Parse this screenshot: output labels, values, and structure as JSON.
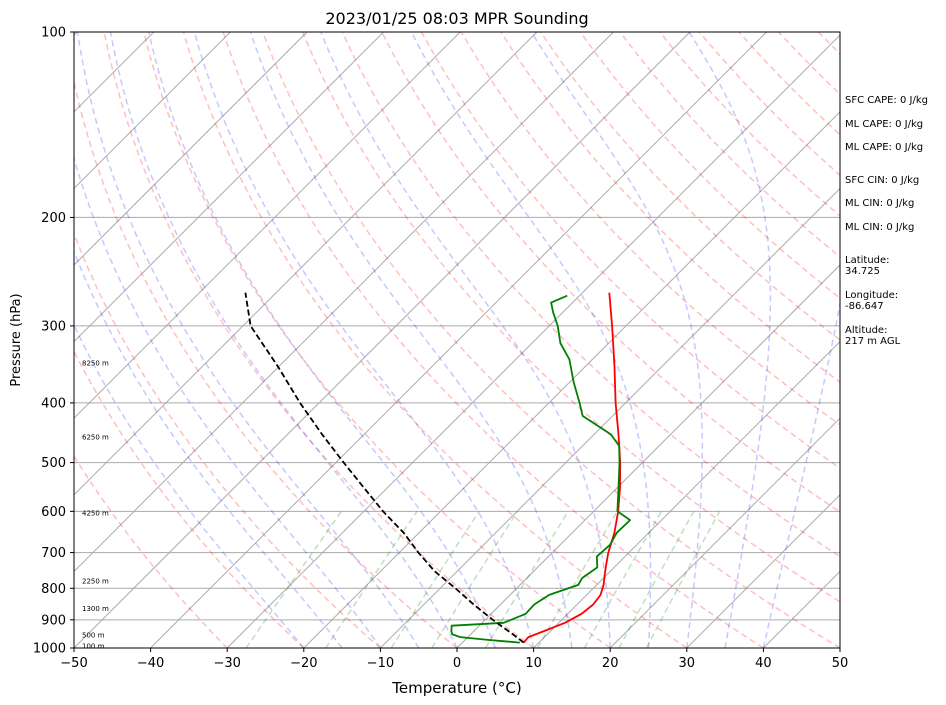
{
  "chart_data": {
    "type": "line",
    "title": "2023/01/25 08:03 MPR Sounding",
    "xlabel": "Temperature (°C)",
    "ylabel": "Pressure (hPa)",
    "xlim": [
      -50,
      50
    ],
    "ylim": [
      1000,
      100
    ],
    "y_scale": "log",
    "x_ticks": [
      -50,
      -40,
      -30,
      -20,
      -10,
      0,
      10,
      20,
      30,
      40,
      50
    ],
    "x_tick_labels": [
      "−50",
      "−40",
      "−30",
      "−20",
      "−10",
      "0",
      "10",
      "20",
      "30",
      "40",
      "50"
    ],
    "y_ticks": [
      1000,
      900,
      800,
      700,
      600,
      500,
      400,
      300,
      200,
      100
    ],
    "y_tick_labels": [
      "1000",
      "900",
      "800",
      "700",
      "600",
      "500",
      "400",
      "300",
      "200",
      "100"
    ],
    "grid": true,
    "skew": "skew-T",
    "height_labels": [
      {
        "p": 995,
        "text": "100 m"
      },
      {
        "p": 955,
        "text": "500 m"
      },
      {
        "p": 865,
        "text": "1300 m"
      },
      {
        "p": 780,
        "text": "2250 m"
      },
      {
        "p": 605,
        "text": "4250 m"
      },
      {
        "p": 455,
        "text": "6250 m"
      },
      {
        "p": 345,
        "text": "8250 m"
      }
    ],
    "series": [
      {
        "color": "#ff0000",
        "points": [
          {
            "p": 980,
            "t": 8.0
          },
          {
            "p": 960,
            "t": 7.9
          },
          {
            "p": 940,
            "t": 9.1
          },
          {
            "p": 910,
            "t": 10.8
          },
          {
            "p": 880,
            "t": 11.8
          },
          {
            "p": 850,
            "t": 12.1
          },
          {
            "p": 820,
            "t": 11.8
          },
          {
            "p": 790,
            "t": 10.9
          },
          {
            "p": 760,
            "t": 9.7
          },
          {
            "p": 730,
            "t": 8.5
          },
          {
            "p": 700,
            "t": 7.3
          },
          {
            "p": 650,
            "t": 5.5
          },
          {
            "p": 600,
            "t": 3.2
          },
          {
            "p": 550,
            "t": 0.4
          },
          {
            "p": 500,
            "t": -2.9
          },
          {
            "p": 450,
            "t": -6.8
          },
          {
            "p": 400,
            "t": -11.3
          },
          {
            "p": 350,
            "t": -16.1
          },
          {
            "p": 300,
            "t": -21.8
          },
          {
            "p": 265,
            "t": -26.5
          }
        ]
      },
      {
        "color": "#008000",
        "points": [
          {
            "p": 980,
            "t": 7.5
          },
          {
            "p": 970,
            "t": 3.0
          },
          {
            "p": 960,
            "t": -1.0
          },
          {
            "p": 950,
            "t": -2.4
          },
          {
            "p": 940,
            "t": -2.9
          },
          {
            "p": 920,
            "t": -3.6
          },
          {
            "p": 910,
            "t": 2.8
          },
          {
            "p": 880,
            "t": 4.5
          },
          {
            "p": 850,
            "t": 4.4
          },
          {
            "p": 820,
            "t": 5.1
          },
          {
            "p": 790,
            "t": 7.6
          },
          {
            "p": 770,
            "t": 7.2
          },
          {
            "p": 740,
            "t": 7.8
          },
          {
            "p": 710,
            "t": 6.3
          },
          {
            "p": 680,
            "t": 6.5
          },
          {
            "p": 650,
            "t": 5.8
          },
          {
            "p": 620,
            "t": 5.9
          },
          {
            "p": 600,
            "t": 3.1
          },
          {
            "p": 550,
            "t": 0.2
          },
          {
            "p": 500,
            "t": -3.0
          },
          {
            "p": 470,
            "t": -5.2
          },
          {
            "p": 450,
            "t": -7.8
          },
          {
            "p": 420,
            "t": -13.9
          },
          {
            "p": 400,
            "t": -16.0
          },
          {
            "p": 370,
            "t": -19.5
          },
          {
            "p": 340,
            "t": -23.0
          },
          {
            "p": 320,
            "t": -26.3
          },
          {
            "p": 300,
            "t": -28.9
          },
          {
            "p": 285,
            "t": -31.3
          },
          {
            "p": 275,
            "t": -32.8
          },
          {
            "p": 268,
            "t": -31.6
          }
        ]
      },
      {
        "color": "#000000",
        "dashed": true,
        "points": [
          {
            "p": 980,
            "t": 8.0
          },
          {
            "p": 950,
            "t": 5.5
          },
          {
            "p": 900,
            "t": 1.0
          },
          {
            "p": 850,
            "t": -3.5
          },
          {
            "p": 800,
            "t": -8.0
          },
          {
            "p": 750,
            "t": -13.0
          },
          {
            "p": 700,
            "t": -17.5
          },
          {
            "p": 650,
            "t": -22.0
          },
          {
            "p": 600,
            "t": -27.5
          },
          {
            "p": 550,
            "t": -33.0
          },
          {
            "p": 500,
            "t": -39.0
          },
          {
            "p": 450,
            "t": -45.5
          },
          {
            "p": 400,
            "t": -52.5
          },
          {
            "p": 350,
            "t": -60.0
          },
          {
            "p": 300,
            "t": -69.0
          },
          {
            "p": 265,
            "t": -74.0
          }
        ]
      }
    ]
  },
  "info": {
    "sfc_cape": "SFC CAPE: 0 J/kg",
    "ml_cape_1": "ML CAPE: 0 J/kg",
    "ml_cape_2": "ML CAPE: 0 J/kg",
    "sfc_cin": "SFC CIN: 0 J/kg",
    "ml_cin_1": "ML CIN: 0 J/kg",
    "ml_cin_2": "ML CIN: 0 J/kg",
    "latitude_label": "Latitude:",
    "latitude_value": "34.725",
    "longitude_label": "Longitude:",
    "longitude_value": "-86.647",
    "altitude_label": "Altitude:",
    "altitude_value": "217 m AGL"
  }
}
